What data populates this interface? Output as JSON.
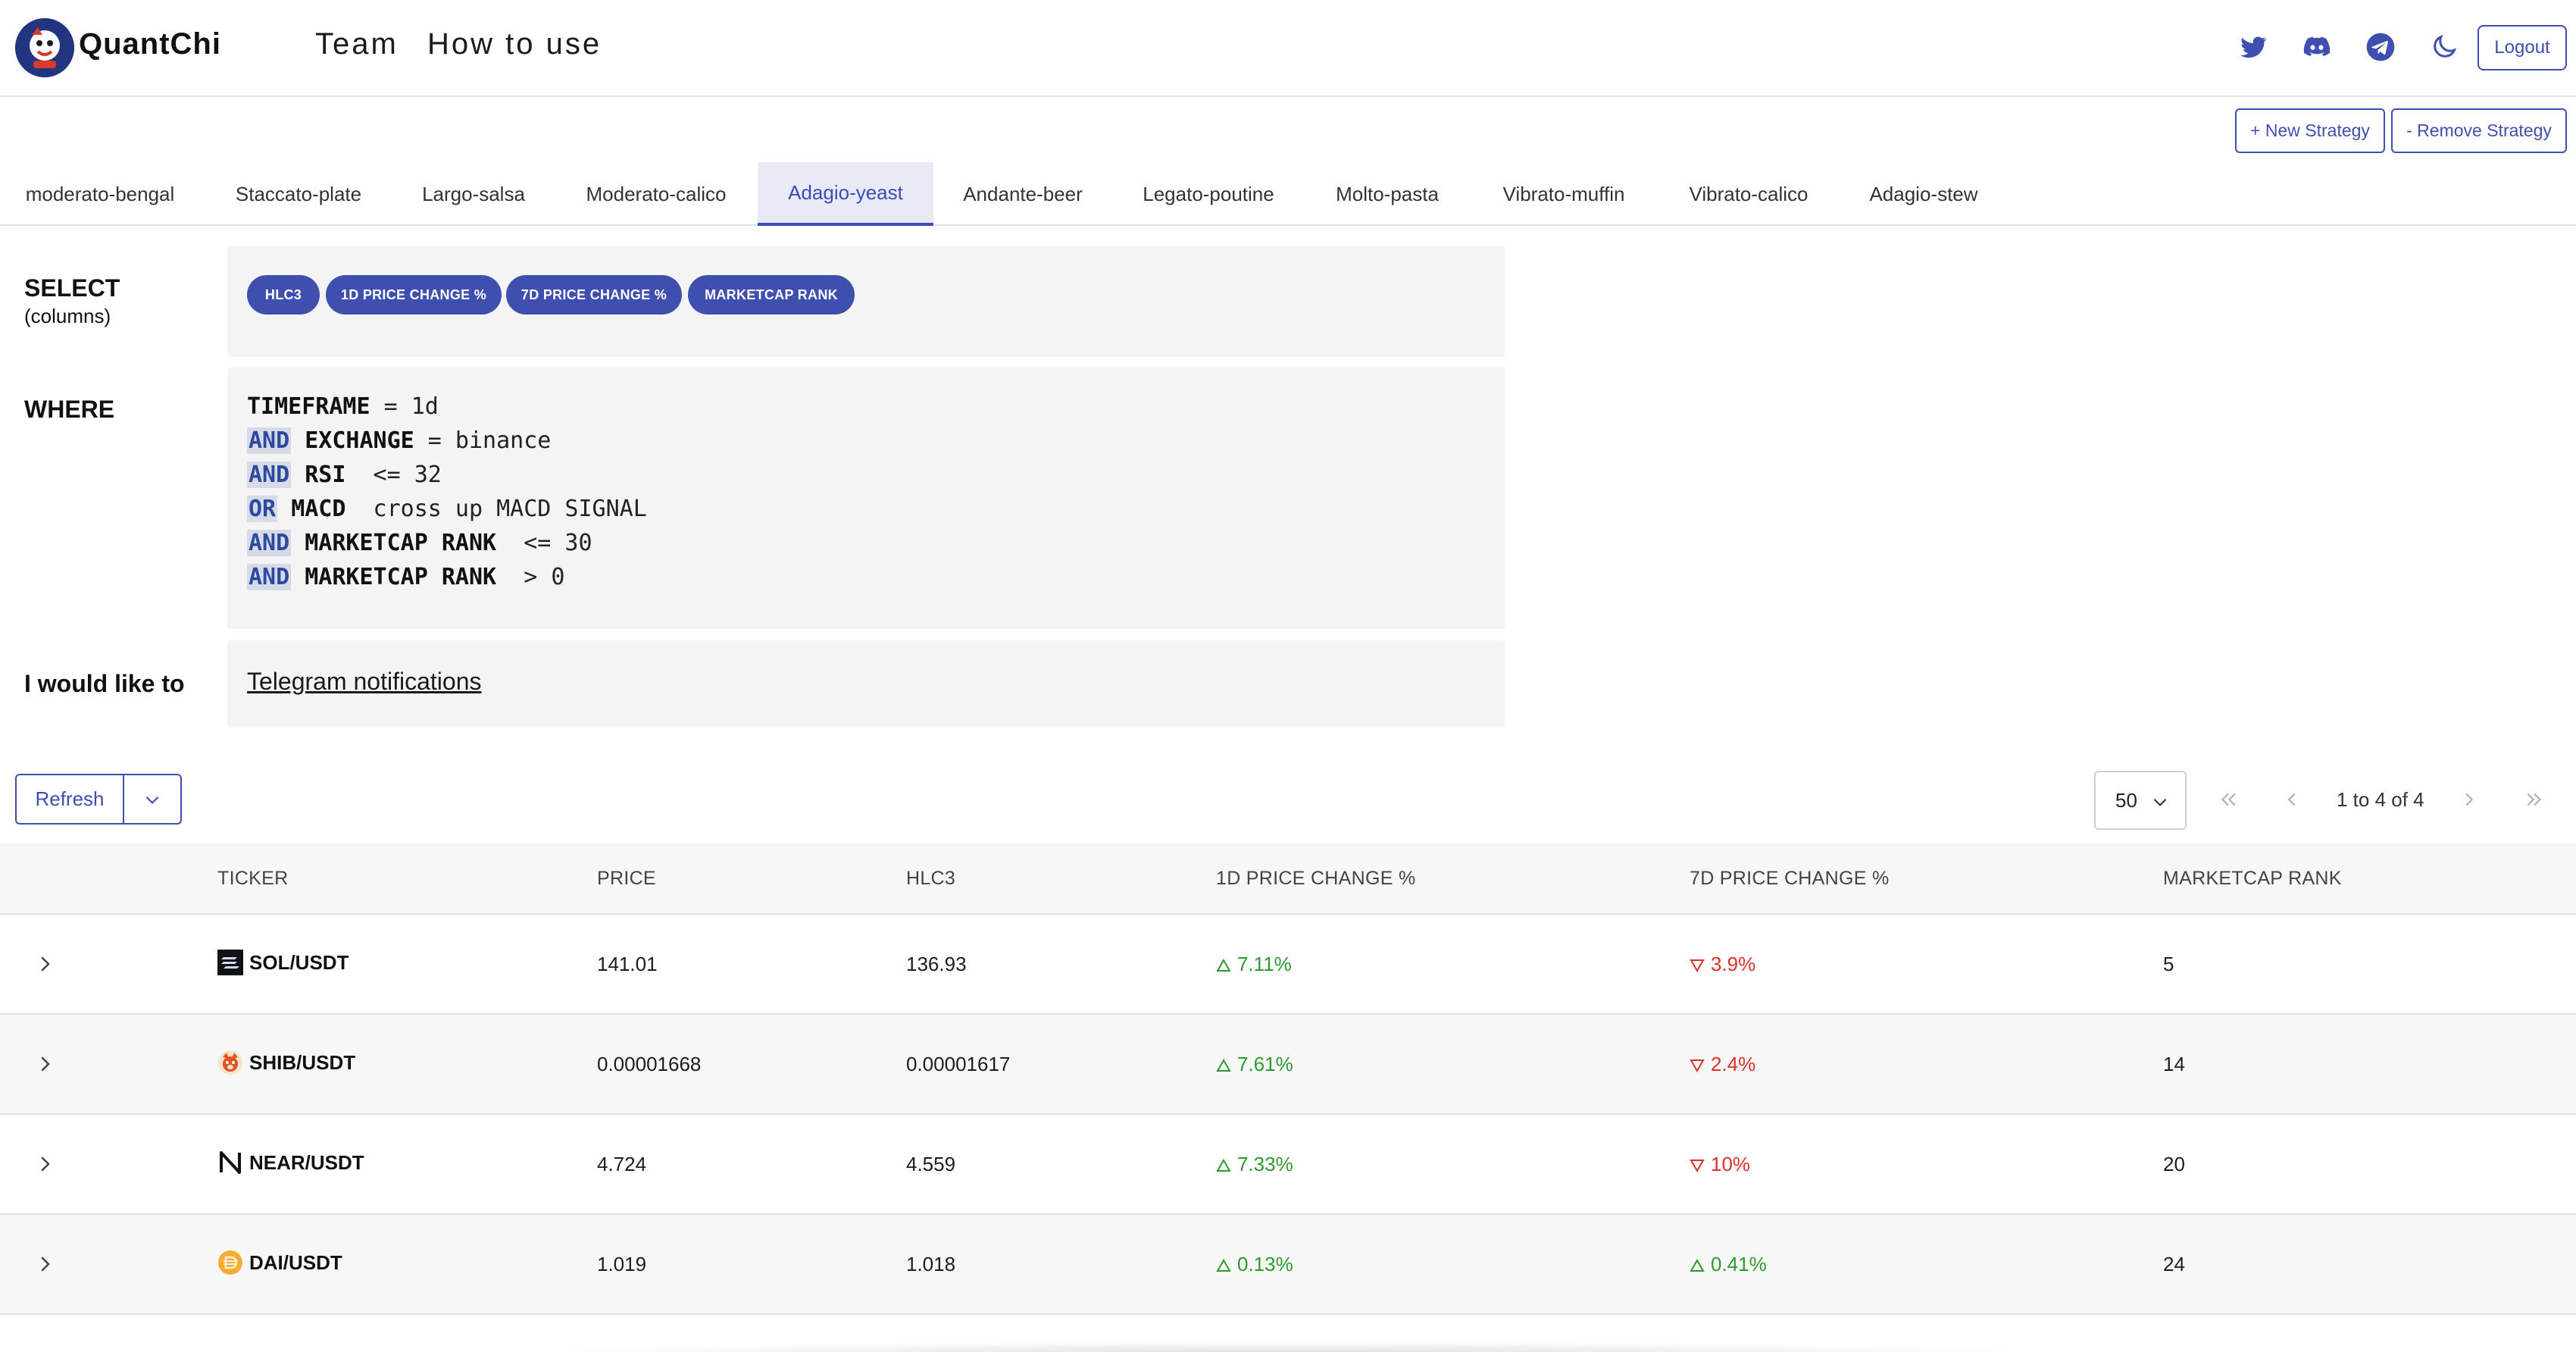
{
  "header": {
    "brand": "QuantChi",
    "nav": {
      "team": "Team",
      "how_to_use": "How to use"
    },
    "icons": [
      "twitter-icon",
      "discord-icon",
      "telegram-icon",
      "moon-icon"
    ],
    "logout_label": "Logout"
  },
  "strategy_actions": {
    "new_label": "+ New Strategy",
    "remove_label": "- Remove Strategy"
  },
  "tabs": [
    {
      "label": "moderato-bengal"
    },
    {
      "label": "Staccato-plate"
    },
    {
      "label": "Largo-salsa"
    },
    {
      "label": "Moderato-calico"
    },
    {
      "label": "Adagio-yeast",
      "active": true
    },
    {
      "label": "Andante-beer"
    },
    {
      "label": "Legato-poutine"
    },
    {
      "label": "Molto-pasta"
    },
    {
      "label": "Vibrato-muffin"
    },
    {
      "label": "Vibrato-calico"
    },
    {
      "label": "Adagio-stew"
    }
  ],
  "query": {
    "select_label": "SELECT",
    "select_sub": "(columns)",
    "columns": [
      "HLC3",
      "1D PRICE CHANGE %",
      "7D PRICE CHANGE %",
      "MARKETCAP RANK"
    ],
    "where_label": "WHERE",
    "where_lines": [
      {
        "conj": "",
        "field": "TIMEFRAME",
        "rest": " = 1d"
      },
      {
        "conj": "AND",
        "field": "EXCHANGE",
        "rest": " = binance"
      },
      {
        "conj": "AND",
        "field": "RSI",
        "rest": "  <= 32"
      },
      {
        "conj": "OR",
        "field": "MACD",
        "rest": "  cross up MACD SIGNAL"
      },
      {
        "conj": "AND",
        "field": "MARKETCAP RANK",
        "rest": "  <= 30"
      },
      {
        "conj": "AND",
        "field": "MARKETCAP RANK",
        "rest": "  > 0"
      }
    ],
    "action_label": "I would like to",
    "action_link": "Telegram notifications"
  },
  "toolbar": {
    "refresh_label": "Refresh",
    "page_size": "50",
    "pagination_info": "1 to 4 of 4"
  },
  "table": {
    "headers": [
      "TICKER",
      "PRICE",
      "HLC3",
      "1D PRICE CHANGE %",
      "7D PRICE CHANGE %",
      "MARKETCAP RANK"
    ],
    "rows": [
      {
        "ticker": "SOL/USDT",
        "icon": "sol-icon",
        "price": "141.01",
        "hlc3": "136.93",
        "d1": "7.11%",
        "d1_dir": "up",
        "d7": "3.9%",
        "d7_dir": "down",
        "rank": "5"
      },
      {
        "ticker": "SHIB/USDT",
        "icon": "shib-icon",
        "price": "0.00001668",
        "hlc3": "0.00001617",
        "d1": "7.61%",
        "d1_dir": "up",
        "d7": "2.4%",
        "d7_dir": "down",
        "rank": "14"
      },
      {
        "ticker": "NEAR/USDT",
        "icon": "near-icon",
        "price": "4.724",
        "hlc3": "4.559",
        "d1": "7.33%",
        "d1_dir": "up",
        "d7": "10%",
        "d7_dir": "down",
        "rank": "20"
      },
      {
        "ticker": "DAI/USDT",
        "icon": "dai-icon",
        "price": "1.019",
        "hlc3": "1.018",
        "d1": "0.13%",
        "d1_dir": "up",
        "d7": "0.41%",
        "d7_dir": "up",
        "rank": "24"
      }
    ]
  },
  "colors": {
    "accent": "#3e4fb0",
    "up": "#2e9a2e",
    "down": "#e0302b",
    "panel": "#f4f4f4"
  }
}
